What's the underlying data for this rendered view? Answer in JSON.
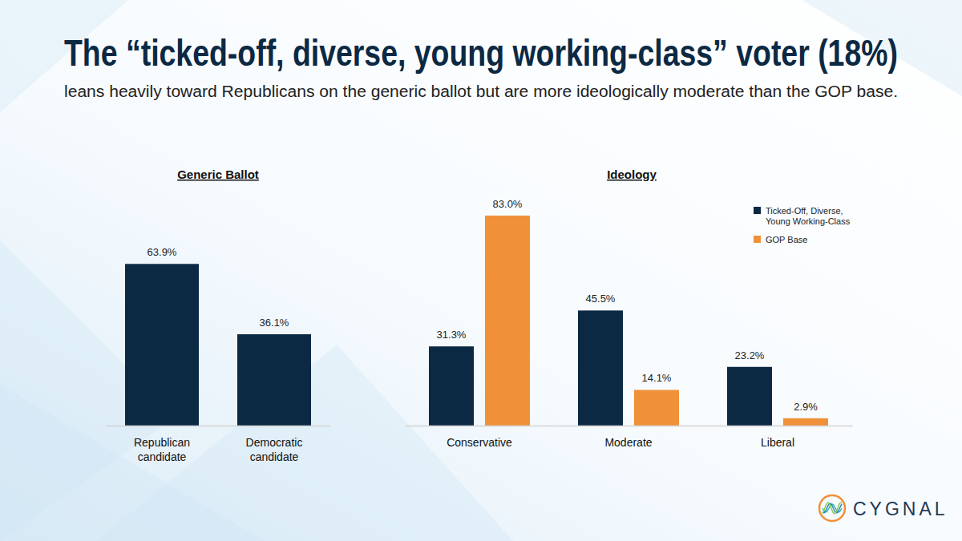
{
  "title": "The “ticked-off, diverse, young working-class” voter (18%)",
  "subtitle": "leans heavily toward Republicans on the generic ballot but are more ideologically moderate than the GOP base.",
  "logo": "CYGNAL",
  "chart_data": [
    {
      "type": "bar",
      "title": "Generic Ballot",
      "categories": [
        "Republican candidate",
        "Democratic candidate"
      ],
      "values": [
        63.9,
        36.1
      ],
      "value_labels": [
        "63.9%",
        "36.1%"
      ],
      "color": "#0c2944",
      "data_labels": true,
      "tick_labels": "x"
    },
    {
      "type": "bar",
      "title": "Ideology",
      "categories": [
        "Conservative",
        "Moderate",
        "Liberal"
      ],
      "series": [
        {
          "name": "Ticked-Off, Diverse, Young Working-Class",
          "color": "#0c2944",
          "values": [
            31.3,
            45.5,
            23.2
          ],
          "value_labels": [
            "31.3%",
            "45.5%",
            "23.2%"
          ]
        },
        {
          "name": "GOP Base",
          "color": "#f0913a",
          "values": [
            83.0,
            14.1,
            2.9
          ],
          "value_labels": [
            "83.0%",
            "14.1%",
            "2.9%"
          ]
        }
      ],
      "legend": "upper right",
      "data_labels": true,
      "tick_labels": "x"
    }
  ]
}
